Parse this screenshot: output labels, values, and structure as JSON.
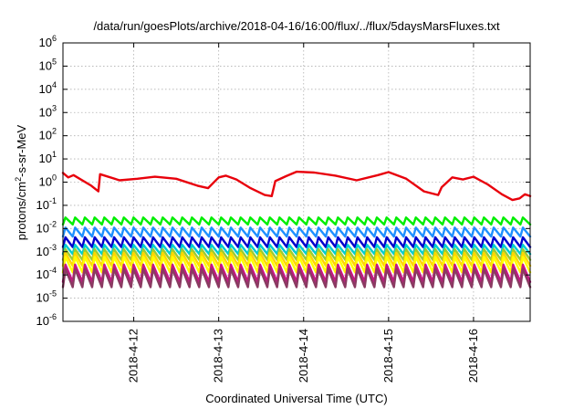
{
  "chart_data": {
    "type": "line",
    "title": "/data/run/goesPlots/archive/2018-04-16/16:00/flux/../flux/5daysMarsFluxes.txt",
    "xlabel": "Coordinated Universal Time (UTC)",
    "ylabel_parts": [
      "protons/cm",
      "2",
      "-s-sr-MeV"
    ],
    "y_scale": "log",
    "ylim": [
      1e-06,
      1000000.0
    ],
    "y_ticks": [
      {
        "base": "10",
        "exp": "-6"
      },
      {
        "base": "10",
        "exp": "-5"
      },
      {
        "base": "10",
        "exp": "-4"
      },
      {
        "base": "10",
        "exp": "-3"
      },
      {
        "base": "10",
        "exp": "-2"
      },
      {
        "base": "10",
        "exp": "-1"
      },
      {
        "base": "10",
        "exp": "0"
      },
      {
        "base": "10",
        "exp": "1"
      },
      {
        "base": "10",
        "exp": "2"
      },
      {
        "base": "10",
        "exp": "3"
      },
      {
        "base": "10",
        "exp": "4"
      },
      {
        "base": "10",
        "exp": "5"
      },
      {
        "base": "10",
        "exp": "6"
      }
    ],
    "x_range": [
      "2018-04-11 04:00",
      "2018-04-16 16:00"
    ],
    "x_ticks": [
      {
        "label": "2018-4-12",
        "time": "2018-04-12 00:00"
      },
      {
        "label": "2018-4-13",
        "time": "2018-04-13 00:00"
      },
      {
        "label": "2018-4-14",
        "time": "2018-04-14 00:00"
      },
      {
        "label": "2018-4-15",
        "time": "2018-04-15 00:00"
      },
      {
        "label": "2018-4-16",
        "time": "2018-04-16 00:00"
      }
    ],
    "grid": true,
    "series": [
      {
        "color": "#e8000b",
        "values": [
          [
            "2018-04-11 04:00",
            2.5
          ],
          [
            "2018-04-11 05:30",
            1.6
          ],
          [
            "2018-04-11 07:00",
            2.0
          ],
          [
            "2018-04-11 12:00",
            0.7
          ],
          [
            "2018-04-11 14:00",
            0.4
          ],
          [
            "2018-04-11 14:30",
            2.2
          ],
          [
            "2018-04-11 20:00",
            1.2
          ],
          [
            "2018-04-12 01:00",
            1.4
          ],
          [
            "2018-04-12 06:00",
            1.7
          ],
          [
            "2018-04-12 12:00",
            1.4
          ],
          [
            "2018-04-12 18:00",
            0.7
          ],
          [
            "2018-04-12 21:00",
            0.55
          ],
          [
            "2018-04-13 00:00",
            1.6
          ],
          [
            "2018-04-13 02:00",
            1.9
          ],
          [
            "2018-04-13 05:00",
            1.3
          ],
          [
            "2018-04-13 09:00",
            0.55
          ],
          [
            "2018-04-13 13:00",
            0.28
          ],
          [
            "2018-04-13 15:00",
            0.25
          ],
          [
            "2018-04-13 16:00",
            1.1
          ],
          [
            "2018-04-13 19:00",
            1.8
          ],
          [
            "2018-04-13 22:00",
            2.8
          ],
          [
            "2018-04-14 03:00",
            2.6
          ],
          [
            "2018-04-14 09:00",
            1.9
          ],
          [
            "2018-04-14 15:00",
            1.2
          ],
          [
            "2018-04-14 21:00",
            2.0
          ],
          [
            "2018-04-15 00:00",
            2.7
          ],
          [
            "2018-04-15 05:00",
            1.4
          ],
          [
            "2018-04-15 10:00",
            0.4
          ],
          [
            "2018-04-15 14:00",
            0.28
          ],
          [
            "2018-04-15 15:00",
            0.6
          ],
          [
            "2018-04-15 18:00",
            1.6
          ],
          [
            "2018-04-15 21:00",
            1.3
          ],
          [
            "2018-04-16 00:00",
            1.7
          ],
          [
            "2018-04-16 04:00",
            0.8
          ],
          [
            "2018-04-16 08:00",
            0.3
          ],
          [
            "2018-04-16 11:00",
            0.17
          ],
          [
            "2018-04-16 13:00",
            0.2
          ],
          [
            "2018-04-16 14:30",
            0.3
          ],
          [
            "2018-04-16 16:00",
            0.25
          ]
        ]
      },
      {
        "color": "#00ee00",
        "pattern": "sawtooth",
        "high": 0.03,
        "low": 0.015
      },
      {
        "color": "#1e90ff",
        "pattern": "sawtooth",
        "high": 0.011,
        "low": 0.0045
      },
      {
        "color": "#0000cd",
        "pattern": "sawtooth",
        "high": 0.0042,
        "low": 0.0016
      },
      {
        "color": "#00ced1",
        "pattern": "sawtooth",
        "high": 0.002,
        "low": 0.0008
      },
      {
        "color": "#9acd32",
        "pattern": "sawtooth",
        "high": 0.0013,
        "low": 0.00045
      },
      {
        "color": "#ffd700",
        "pattern": "sawtooth",
        "high": 0.0009,
        "low": 0.00025
      },
      {
        "color": "#ffff00",
        "pattern": "sawtooth",
        "high": 0.0006,
        "low": 0.00013
      },
      {
        "color": "#c71585",
        "pattern": "sawtooth",
        "high": 0.00028,
        "low": 5e-05
      },
      {
        "color": "#8b3a62",
        "pattern": "sawtooth",
        "high": 0.00018,
        "low": 3e-05
      }
    ]
  }
}
